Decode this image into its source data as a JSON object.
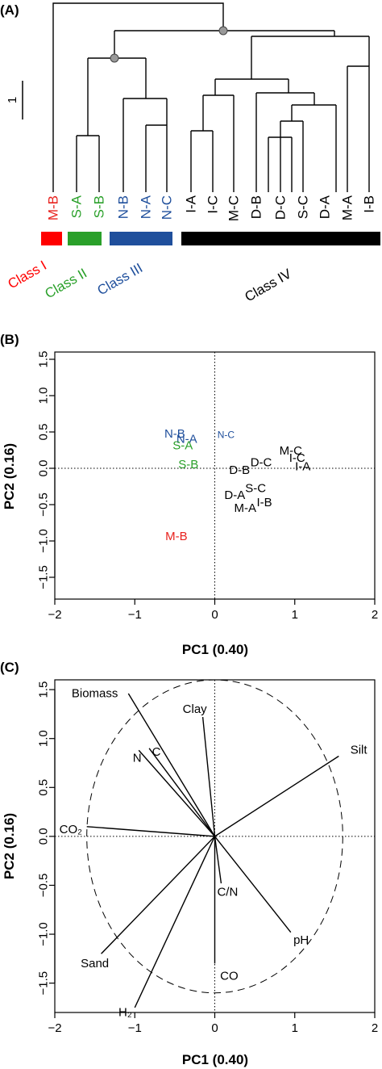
{
  "chart_data": [
    {
      "panel": "(A)",
      "type": "dendrogram",
      "scale_label": "1",
      "leaves": [
        {
          "label": "M-B",
          "color": "#e8221e"
        },
        {
          "label": "S-A",
          "color": "#2aa02a"
        },
        {
          "label": "S-B",
          "color": "#2aa02a"
        },
        {
          "label": "N-B",
          "color": "#1f4f9c"
        },
        {
          "label": "N-A",
          "color": "#1f4f9c"
        },
        {
          "label": "N-C",
          "color": "#1f4f9c"
        },
        {
          "label": "I-A",
          "color": "#000000"
        },
        {
          "label": "I-C",
          "color": "#000000"
        },
        {
          "label": "M-C",
          "color": "#000000"
        },
        {
          "label": "D-B",
          "color": "#000000"
        },
        {
          "label": "D-C",
          "color": "#000000"
        },
        {
          "label": "S-C",
          "color": "#000000"
        },
        {
          "label": "D-A",
          "color": "#000000"
        },
        {
          "label": "M-A",
          "color": "#000000"
        },
        {
          "label": "I-B",
          "color": "#000000"
        }
      ],
      "classes": [
        {
          "label": "Class I",
          "color": "#ff0000"
        },
        {
          "label": "Class II",
          "color": "#2aa02a"
        },
        {
          "label": "Class III",
          "color": "#1f4f9c"
        },
        {
          "label": "Class IV",
          "color": "#000000"
        }
      ]
    },
    {
      "panel": "(B)",
      "type": "scatter",
      "xlabel": "PC1 (0.40)",
      "ylabel": "PC2 (0.16)",
      "xlim": [
        -2,
        2
      ],
      "ylim": [
        -1.8,
        1.6
      ],
      "xticks": [
        -2,
        -1,
        0,
        1,
        2
      ],
      "yticks": [
        -1.5,
        -1.0,
        -0.5,
        0.0,
        0.5,
        1.0,
        1.5
      ],
      "points": [
        {
          "label": "N-B",
          "x": -0.5,
          "y": 0.47,
          "color": "#1f4f9c"
        },
        {
          "label": "N-A",
          "x": -0.35,
          "y": 0.4,
          "color": "#1f4f9c"
        },
        {
          "label": "N-C",
          "x": 0.14,
          "y": 0.46,
          "color": "#1f4f9c"
        },
        {
          "label": "S-A",
          "x": -0.4,
          "y": 0.31,
          "color": "#2aa02a"
        },
        {
          "label": "S-B",
          "x": -0.33,
          "y": 0.05,
          "color": "#2aa02a"
        },
        {
          "label": "M-B",
          "x": -0.48,
          "y": -0.94,
          "color": "#e8221e"
        },
        {
          "label": "M-C",
          "x": 0.95,
          "y": 0.24,
          "color": "#000000"
        },
        {
          "label": "I-C",
          "x": 1.03,
          "y": 0.14,
          "color": "#000000"
        },
        {
          "label": "I-A",
          "x": 1.1,
          "y": 0.02,
          "color": "#000000"
        },
        {
          "label": "D-C",
          "x": 0.58,
          "y": 0.08,
          "color": "#000000"
        },
        {
          "label": "D-B",
          "x": 0.31,
          "y": -0.03,
          "color": "#000000"
        },
        {
          "label": "S-C",
          "x": 0.51,
          "y": -0.28,
          "color": "#000000"
        },
        {
          "label": "D-A",
          "x": 0.25,
          "y": -0.37,
          "color": "#000000"
        },
        {
          "label": "I-B",
          "x": 0.62,
          "y": -0.47,
          "color": "#000000"
        },
        {
          "label": "M-A",
          "x": 0.38,
          "y": -0.55,
          "color": "#000000"
        }
      ]
    },
    {
      "panel": "(C)",
      "type": "biplot",
      "xlabel": "PC1 (0.40)",
      "ylabel": "PC2 (0.16)",
      "xlim": [
        -2,
        2
      ],
      "ylim": [
        -1.8,
        1.6
      ],
      "xticks": [
        -2,
        -1,
        0,
        1,
        2
      ],
      "yticks": [
        -1.5,
        -1.0,
        -0.5,
        0.0,
        0.5,
        1.0,
        1.5
      ],
      "circle_radius": 1.6,
      "vectors": [
        {
          "label": "Biomass",
          "x": -1.08,
          "y": 1.46
        },
        {
          "label": "Clay",
          "x": -0.15,
          "y": 1.22
        },
        {
          "label": "N",
          "x": -0.95,
          "y": 0.88
        },
        {
          "label": "C",
          "x": -0.82,
          "y": 0.9
        },
        {
          "label": "CO2",
          "x": -1.6,
          "y": 0.1
        },
        {
          "label": "Silt",
          "x": 1.55,
          "y": 0.82
        },
        {
          "label": "C/N",
          "x": 0.08,
          "y": -0.48
        },
        {
          "label": "pH",
          "x": 0.95,
          "y": -0.98
        },
        {
          "label": "CO",
          "x": 0.0,
          "y": -1.3
        },
        {
          "label": "Sand",
          "x": -1.42,
          "y": -1.2
        },
        {
          "label": "H2",
          "x": -1.0,
          "y": -1.75
        }
      ],
      "vector_labels": [
        {
          "text": "Biomass",
          "x": -1.5,
          "y": 1.46
        },
        {
          "text": "Clay",
          "x": -0.25,
          "y": 1.3
        },
        {
          "text": "N",
          "x": -0.97,
          "y": 0.8
        },
        {
          "text": "C",
          "x": -0.73,
          "y": 0.86
        },
        {
          "text": "CO₂",
          "x": -1.8,
          "y": 0.07
        },
        {
          "text": "Silt",
          "x": 1.8,
          "y": 0.88
        },
        {
          "text": "C/N",
          "x": 0.16,
          "y": -0.57
        },
        {
          "text": "pH",
          "x": 1.08,
          "y": -1.06
        },
        {
          "text": "CO",
          "x": 0.18,
          "y": -1.43
        },
        {
          "text": "Sand",
          "x": -1.5,
          "y": -1.3
        },
        {
          "text": "H₂",
          "x": -1.12,
          "y": -1.8
        }
      ]
    }
  ]
}
